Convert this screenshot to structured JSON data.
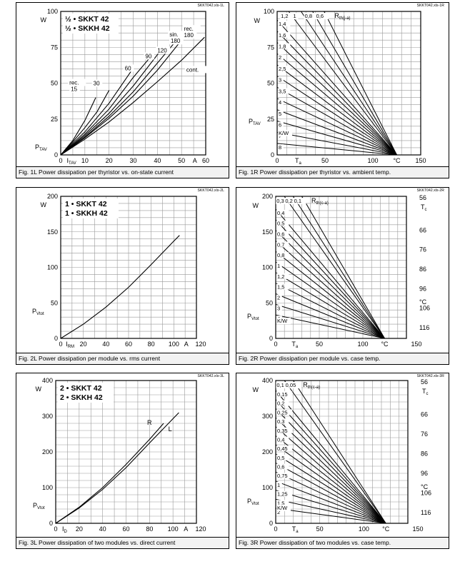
{
  "chart_data": [
    {
      "id": "1L",
      "type": "line",
      "code": "SKKT042.xls-1L",
      "caption": "Fig. 1L Power dissipation per thyristor vs. on-state current",
      "legend": [
        "½ • SKKT 42",
        "½ • SKKH 42"
      ],
      "ylabel": "P",
      "ylabel_sub": "TAV",
      "yunit": "W",
      "xlabel": "I",
      "xlabel_sub": "TAV",
      "xunit": "A",
      "xlim": [
        0,
        60
      ],
      "ylim": [
        0,
        100
      ],
      "xticks": [
        0,
        10,
        20,
        30,
        40,
        50,
        60
      ],
      "yticks": [
        25,
        50,
        75,
        100
      ],
      "grid": true,
      "series": [
        {
          "name": "rec. 15",
          "points": [
            [
              0,
              0
            ],
            [
              5,
              10
            ],
            [
              10,
              24
            ],
            [
              14.5,
              40
            ]
          ]
        },
        {
          "name": "30",
          "points": [
            [
              0,
              0
            ],
            [
              5,
              9
            ],
            [
              10,
              19
            ],
            [
              15,
              30
            ],
            [
              20,
              45
            ]
          ]
        },
        {
          "name": "60",
          "points": [
            [
              0,
              0
            ],
            [
              10,
              16
            ],
            [
              20,
              36
            ],
            [
              29,
              58
            ]
          ]
        },
        {
          "name": "90",
          "points": [
            [
              0,
              0
            ],
            [
              10,
              14.5
            ],
            [
              20,
              32
            ],
            [
              30,
              54
            ],
            [
              37,
              68
            ]
          ]
        },
        {
          "name": "120",
          "points": [
            [
              0,
              0
            ],
            [
              10,
              13.5
            ],
            [
              20,
              29
            ],
            [
              30,
              48
            ],
            [
              41,
              72
            ]
          ]
        },
        {
          "name": "sin. 180",
          "points": [
            [
              0,
              0
            ],
            [
              10,
              12.5
            ],
            [
              20,
              27
            ],
            [
              30,
              44
            ],
            [
              40,
              64
            ],
            [
              48,
              80
            ]
          ]
        },
        {
          "name": "rec. 180",
          "points": [
            [
              0,
              0
            ],
            [
              10,
              12
            ],
            [
              20,
              25.5
            ],
            [
              30,
              41
            ],
            [
              40,
              59
            ],
            [
              50,
              80
            ],
            [
              53,
              86
            ]
          ]
        },
        {
          "name": "cont.",
          "points": [
            [
              0,
              0
            ],
            [
              10,
              11
            ],
            [
              20,
              23
            ],
            [
              30,
              36.5
            ],
            [
              40,
              51
            ],
            [
              50,
              66
            ],
            [
              59.5,
              82
            ]
          ]
        }
      ],
      "labels": {
        "rec15_a": "rec.",
        "rec15_b": "15",
        "l30": "30",
        "l60": "60",
        "l90": "90",
        "l120": "120",
        "sin_a": "sin.",
        "sin_b": "180",
        "rec180_a": "rec.",
        "rec180_b": "180",
        "cont": "cont."
      }
    },
    {
      "id": "1R",
      "type": "line",
      "code": "SKKT042.xls-1R",
      "caption": "Fig. 1R Power dissipation per thyristor vs. ambient temp.",
      "ylabel": "P",
      "ylabel_sub": "TAV",
      "yunit": "W",
      "xlabel": "T",
      "xlabel_sub": "a",
      "xunit": "°C",
      "xlim": [
        0,
        150
      ],
      "ylim": [
        0,
        100
      ],
      "xticks": [
        0,
        50,
        100,
        150
      ],
      "yticks": [
        0,
        25,
        50,
        75,
        100
      ],
      "grid": true,
      "converge_x": 125,
      "param_label": "R",
      "param_label_sub": "th(j-a)",
      "param_unit": "K/W",
      "top_params": [
        "1,2",
        "1",
        "0,8",
        "0,6"
      ],
      "side_params": [
        "1,4",
        "1,6",
        "1,8",
        "2",
        "2,5",
        "3",
        "3,5",
        "4",
        "5",
        "6",
        "7",
        "8"
      ]
    },
    {
      "id": "2L",
      "type": "line",
      "code": "SKKT042.xls-2L",
      "caption": "Fig. 2L Power dissipation per module vs. rms current",
      "legend": [
        "1 • SKKT 42",
        "1 • SKKH 42"
      ],
      "ylabel": "P",
      "ylabel_sub": "Vtot",
      "yunit": "W",
      "xlabel": "I",
      "xlabel_sub": "RM",
      "xunit": "A",
      "xlim": [
        0,
        120
      ],
      "ylim": [
        0,
        200
      ],
      "xticks": [
        0,
        20,
        40,
        60,
        80,
        100,
        120
      ],
      "yticks": [
        0,
        50,
        100,
        150,
        200
      ],
      "grid": true,
      "series": [
        {
          "name": "P",
          "points": [
            [
              0,
              0
            ],
            [
              20,
              20
            ],
            [
              40,
              44
            ],
            [
              60,
              72
            ],
            [
              80,
              104
            ],
            [
              100,
              137
            ],
            [
              105,
              145
            ]
          ]
        }
      ]
    },
    {
      "id": "2R",
      "type": "line",
      "code": "SKKT042.xls-2R",
      "caption": "Fig. 2R Power dissipation per module vs. case temp.",
      "ylabel": "P",
      "ylabel_sub": "Vtot",
      "yunit": "W",
      "xlabel": "T",
      "xlabel_sub": "a",
      "xunit": "°C",
      "xlim": [
        0,
        150
      ],
      "ylim": [
        0,
        200
      ],
      "xticks": [
        0,
        50,
        100,
        150
      ],
      "yticks": [
        0,
        50,
        100,
        150,
        200
      ],
      "grid": true,
      "converge_x": 125,
      "param_label": "R",
      "param_label_sub": "th(c-a)",
      "param_unit": "K/W",
      "top_params": [
        "0,3",
        "0,2",
        "0,1"
      ],
      "side_params": [
        "0,4",
        "0,5",
        "0,6",
        "0,7",
        "0,8",
        "1",
        "1,2",
        "1,5",
        "2",
        "3",
        "4"
      ],
      "right_axis": {
        "label": "T",
        "label_sub": "c",
        "unit": "°C",
        "ticks": [
          "56",
          "66",
          "76",
          "86",
          "96",
          "106",
          "116"
        ]
      }
    },
    {
      "id": "3L",
      "type": "line",
      "code": "SKKT042.xls-3L",
      "caption": "Fig. 3L Power dissipation of two modules vs. direct current",
      "legend": [
        "2 • SKKT 42",
        "2 • SKKH 42"
      ],
      "ylabel": "P",
      "ylabel_sub": "Vtot",
      "yunit": "W",
      "xlabel": "I",
      "xlabel_sub": "D",
      "xunit": "A",
      "xlim": [
        0,
        120
      ],
      "ylim": [
        0,
        400
      ],
      "xticks": [
        0,
        20,
        40,
        60,
        80,
        100,
        120
      ],
      "yticks": [
        0,
        100,
        200,
        300,
        400
      ],
      "grid": true,
      "series": [
        {
          "name": "R",
          "points": [
            [
              0,
              0
            ],
            [
              20,
              45
            ],
            [
              40,
              100
            ],
            [
              60,
              165
            ],
            [
              80,
              235
            ],
            [
              92,
              280
            ]
          ]
        },
        {
          "name": "L",
          "points": [
            [
              0,
              0
            ],
            [
              20,
              43
            ],
            [
              40,
              95
            ],
            [
              60,
              156
            ],
            [
              80,
              225
            ],
            [
              105,
              310
            ]
          ]
        }
      ]
    },
    {
      "id": "3R",
      "type": "line",
      "code": "SKKT042.xls-3R",
      "caption": "Fig. 3R Power dissipation of two modules vs. case temp.",
      "ylabel": "P",
      "ylabel_sub": "Vtot",
      "yunit": "W",
      "xlabel": "T",
      "xlabel_sub": "a",
      "xunit": "°C",
      "xlim": [
        0,
        150
      ],
      "ylim": [
        0,
        400
      ],
      "xticks": [
        0,
        50,
        100,
        150
      ],
      "yticks": [
        0,
        100,
        200,
        300,
        400
      ],
      "grid": true,
      "converge_x": 125,
      "param_label": "R",
      "param_label_sub": "th(c-a)",
      "param_unit": "K/W",
      "top_params": [
        "0,1",
        "0,05"
      ],
      "side_params": [
        "0,15",
        "0,2",
        "0,25",
        "0,3",
        "0,35",
        "0,4",
        "0,45",
        "0,5",
        "0,6",
        "0,75",
        "1",
        "1,25",
        "1,5",
        "2"
      ],
      "right_axis": {
        "label": "T",
        "label_sub": "c",
        "unit": "°C",
        "ticks": [
          "56",
          "66",
          "76",
          "86",
          "96",
          "106",
          "116"
        ]
      }
    }
  ]
}
